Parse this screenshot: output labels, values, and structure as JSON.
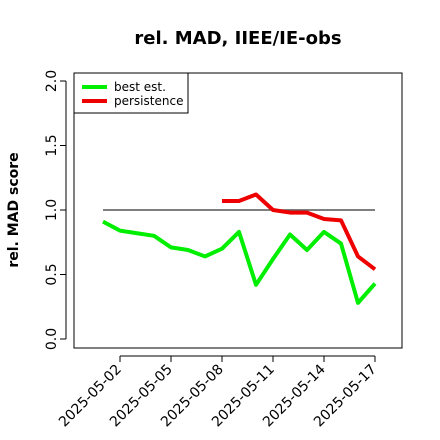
{
  "chart_data": {
    "type": "line",
    "title": "rel. MAD, IIEE/IE-obs",
    "xlabel": "",
    "ylabel": "rel. MAD score",
    "x": [
      "2025-05-01",
      "2025-05-02",
      "2025-05-03",
      "2025-05-04",
      "2025-05-05",
      "2025-05-06",
      "2025-05-07",
      "2025-05-08",
      "2025-05-09",
      "2025-05-10",
      "2025-05-11",
      "2025-05-12",
      "2025-05-13",
      "2025-05-14",
      "2025-05-15",
      "2025-05-16",
      "2025-05-17"
    ],
    "x_ticks": [
      "2025-05-02",
      "2025-05-05",
      "2025-05-08",
      "2025-05-11",
      "2025-05-14",
      "2025-05-17"
    ],
    "ylim": [
      0,
      2
    ],
    "y_ticks": [
      "0.0",
      "0.5",
      "1.0",
      "1.5",
      "2.0"
    ],
    "reference_line": 1.0,
    "legend_position": "top-left",
    "series": [
      {
        "name": "best est.",
        "color": "#00ee00",
        "values": [
          0.91,
          0.84,
          0.82,
          0.8,
          0.71,
          0.69,
          0.64,
          0.7,
          0.83,
          0.42,
          0.62,
          0.81,
          0.69,
          0.83,
          0.74,
          0.28,
          0.43
        ]
      },
      {
        "name": "persistence",
        "color": "#ee0000",
        "values": [
          null,
          null,
          null,
          null,
          null,
          null,
          null,
          1.07,
          1.07,
          1.12,
          1.0,
          0.98,
          0.98,
          0.93,
          0.92,
          0.64,
          0.54
        ]
      }
    ]
  }
}
